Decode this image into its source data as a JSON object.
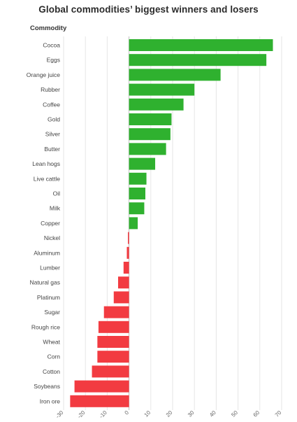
{
  "header": {
    "title": "Global commodities’ biggest winners and losers",
    "column_label": "Commodity"
  },
  "chart_data": {
    "type": "bar",
    "orientation": "horizontal",
    "title": "Global commodities’ biggest winners and losers",
    "categories": [
      "Cocoa",
      "Eggs",
      "Orange juice",
      "Rubber",
      "Coffee",
      "Gold",
      "Silver",
      "Butter",
      "Lean hogs",
      "Live cattle",
      "Oil",
      "Milk",
      "Copper",
      "Nickel",
      "Aluminum",
      "Lumber",
      "Natural gas",
      "Platinum",
      "Sugar",
      "Rough rice",
      "Wheat",
      "Corn",
      "Cotton",
      "Soybeans",
      "Iron ore"
    ],
    "values": [
      66,
      63,
      42,
      30,
      25,
      19.5,
      19,
      17,
      12,
      8,
      7.5,
      7,
      4,
      -0.5,
      -1,
      -2.5,
      -5,
      -7,
      -11.5,
      -14,
      -14.5,
      -14.5,
      -17,
      -25,
      -27
    ],
    "xlim": [
      -30,
      70
    ],
    "xticks": [
      "-30",
      "-20",
      "-10",
      "0",
      "10",
      "20",
      "30",
      "40",
      "50",
      "60",
      "70"
    ],
    "grid": true,
    "positive_color": "#2fb12f",
    "negative_color": "#f23b41"
  }
}
